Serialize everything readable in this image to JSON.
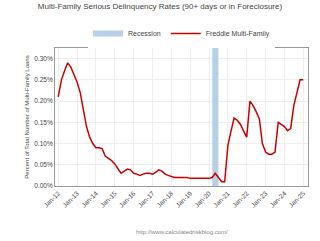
{
  "chart_data": {
    "type": "line",
    "title": "Multi-Family Serious Delinquency Rates (90+ days or in Foreclosure)",
    "ylabel": "Percent of Total Number of Multi-Family Loans",
    "annotations": [
      "http://www.calculatedriskblog.com/"
    ],
    "x": [
      2012.0,
      2012.17,
      2012.33,
      2012.5,
      2012.67,
      2012.83,
      2013.0,
      2013.17,
      2013.33,
      2013.5,
      2013.67,
      2013.83,
      2014.0,
      2014.17,
      2014.33,
      2014.5,
      2014.67,
      2014.83,
      2015.0,
      2015.17,
      2015.33,
      2015.5,
      2015.67,
      2015.83,
      2016.0,
      2016.17,
      2016.33,
      2016.5,
      2016.67,
      2016.83,
      2017.0,
      2017.17,
      2017.33,
      2017.5,
      2017.67,
      2017.83,
      2018.0,
      2018.17,
      2018.33,
      2018.5,
      2018.67,
      2018.83,
      2019.0,
      2019.17,
      2019.33,
      2019.5,
      2019.67,
      2019.83,
      2020.0,
      2020.17,
      2020.33,
      2020.5,
      2020.67,
      2020.83,
      2021.0,
      2021.17,
      2021.33,
      2021.5,
      2021.67,
      2021.83,
      2022.0,
      2022.17,
      2022.33,
      2022.5,
      2022.67,
      2022.83,
      2023.0,
      2023.17,
      2023.33,
      2023.5,
      2023.67,
      2023.83,
      2024.0,
      2024.17,
      2024.33,
      2024.5,
      2024.67,
      2024.83,
      2025.0
    ],
    "series": [
      {
        "name": "Freddie Multi-Family",
        "color": "#cc0000",
        "values": [
          0.0021,
          0.0025,
          0.0027,
          0.0029,
          0.0028,
          0.00265,
          0.00245,
          0.0022,
          0.0018,
          0.0014,
          0.00115,
          0.001,
          0.0009,
          0.0009,
          0.00088,
          0.0007,
          0.00065,
          0.0006,
          0.00052,
          0.0004,
          0.0003,
          0.00035,
          0.0004,
          0.00038,
          0.0003,
          0.00028,
          0.00025,
          0.00028,
          0.0003,
          0.0003,
          0.00028,
          0.00032,
          0.00038,
          0.00035,
          0.00028,
          0.00025,
          0.00022,
          0.0002,
          0.0002,
          0.0002,
          0.0002,
          0.0002,
          0.00018,
          0.00018,
          0.00018,
          0.00018,
          0.00018,
          0.00018,
          0.00018,
          0.0002,
          0.0003,
          0.0002,
          0.0001,
          0.0001,
          0.00095,
          0.0013,
          0.0016,
          0.00155,
          0.00145,
          0.0013,
          0.00115,
          0.002,
          0.0019,
          0.00175,
          0.00158,
          0.001,
          0.0008,
          0.00075,
          0.00075,
          0.0008,
          0.0015,
          0.00145,
          0.0014,
          0.0013,
          0.00135,
          0.0019,
          0.0022,
          0.0025,
          0.0025
        ]
      }
    ],
    "spans": [
      {
        "name": "Recession",
        "start": 2020.17,
        "end": 2020.5,
        "color": "#b8cfe8"
      }
    ],
    "xlim": [
      2011.83,
      2025.25
    ],
    "xticks": [
      {
        "value": 2012,
        "label": "Jan-12"
      },
      {
        "value": 2013,
        "label": "Jan-13"
      },
      {
        "value": 2014,
        "label": "Jan-14"
      },
      {
        "value": 2015,
        "label": "Jan-15"
      },
      {
        "value": 2016,
        "label": "Jan-16"
      },
      {
        "value": 2017,
        "label": "Jan-17"
      },
      {
        "value": 2018,
        "label": "Jan-18"
      },
      {
        "value": 2019,
        "label": "Jan-19"
      },
      {
        "value": 2020,
        "label": "Jan-20"
      },
      {
        "value": 2021,
        "label": "Jan-21"
      },
      {
        "value": 2022,
        "label": "Jan-22"
      },
      {
        "value": 2023,
        "label": "Jan-23"
      },
      {
        "value": 2024,
        "label": "Jan-24"
      },
      {
        "value": 2025,
        "label": "Jan-25"
      }
    ],
    "ylim": [
      0,
      0.00325
    ],
    "yticks": [
      {
        "value": 0.0,
        "label": "0.00%"
      },
      {
        "value": 0.0005,
        "label": "0.05%"
      },
      {
        "value": 0.001,
        "label": "0.10%"
      },
      {
        "value": 0.0015,
        "label": "0.15%"
      },
      {
        "value": 0.002,
        "label": "0.20%"
      },
      {
        "value": 0.0025,
        "label": "0.25%"
      },
      {
        "value": 0.003,
        "label": "0.30%"
      }
    ],
    "grid": true,
    "legend": "upper center"
  }
}
